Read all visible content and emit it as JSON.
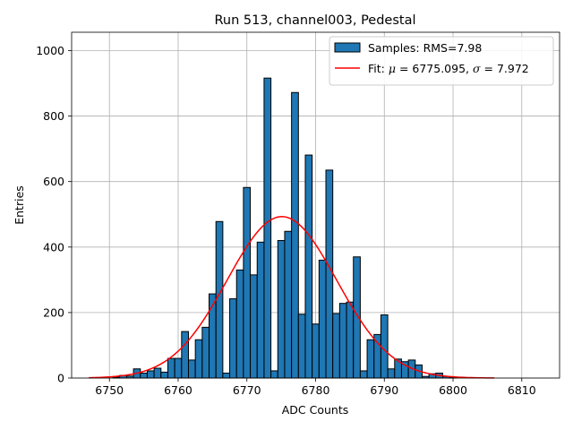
{
  "chart_data": {
    "type": "bar",
    "title": "Run 513, channel003, Pedestal",
    "xlabel": "ADC Counts",
    "ylabel": "Entries",
    "xlim": [
      6744.5,
      6815.5
    ],
    "ylim": [
      0,
      1056
    ],
    "xticks": [
      6750,
      6760,
      6770,
      6780,
      6790,
      6800,
      6810
    ],
    "yticks": [
      0,
      200,
      400,
      600,
      800,
      1000
    ],
    "grid": true,
    "legend": {
      "position": "top-right",
      "hist_label": "Samples: RMS=7.98",
      "fit_label_prefix": "Fit: ",
      "fit_mu_symbol": "μ",
      "fit_mu_value": " = 6775.095, ",
      "fit_sigma_symbol": "σ",
      "fit_sigma_value": " = 7.972"
    },
    "histogram": {
      "name": "Samples: RMS=7.98",
      "color": "#1f77b4",
      "edgecolor": "#000000",
      "bin_centers": [
        6749,
        6750,
        6751,
        6752,
        6753,
        6754,
        6755,
        6756,
        6757,
        6758,
        6759,
        6760,
        6761,
        6762,
        6763,
        6764,
        6765,
        6766,
        6767,
        6768,
        6769,
        6770,
        6771,
        6772,
        6773,
        6774,
        6775,
        6776,
        6777,
        6778,
        6779,
        6780,
        6781,
        6782,
        6783,
        6784,
        6785,
        6786,
        6787,
        6788,
        6789,
        6790,
        6791,
        6792,
        6793,
        6794,
        6795,
        6796,
        6797,
        6798,
        6799,
        6800,
        6801,
        6802,
        6803,
        6804,
        6805,
        6806,
        6807,
        6808,
        6809,
        6810,
        6811
      ],
      "counts": [
        0,
        0,
        3,
        8,
        6,
        28,
        15,
        22,
        30,
        18,
        60,
        60,
        142,
        55,
        117,
        155,
        257,
        478,
        15,
        242,
        330,
        582,
        315,
        415,
        916,
        22,
        420,
        448,
        872,
        195,
        681,
        165,
        360,
        635,
        197,
        228,
        232,
        370,
        22,
        117,
        133,
        193,
        28,
        58,
        50,
        55,
        40,
        5,
        13,
        15,
        5,
        2,
        0,
        0,
        0,
        0,
        0,
        0,
        0,
        0,
        0,
        0,
        0
      ]
    },
    "fit": {
      "name": "Fit",
      "color": "#ff0000",
      "mu": 6775.095,
      "sigma": 7.972,
      "peak": 493,
      "x_range": [
        6747,
        6806
      ]
    }
  }
}
